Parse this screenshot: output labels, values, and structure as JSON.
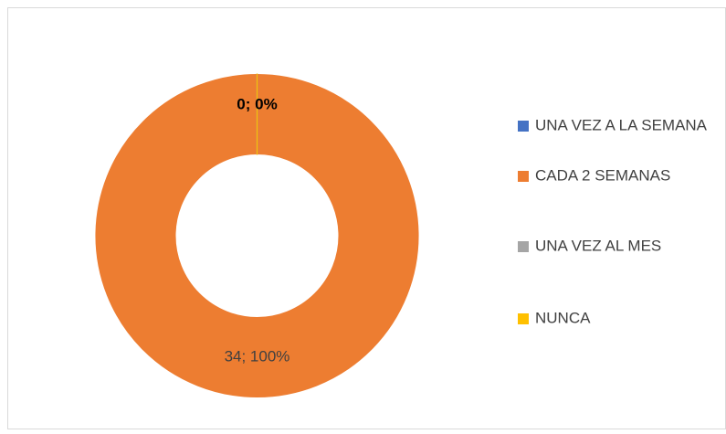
{
  "chart_data": {
    "type": "donut",
    "categories": [
      "UNA VEZ A LA SEMANA",
      "CADA 2 SEMANAS",
      "UNA VEZ AL MES",
      "NUNCA"
    ],
    "values": [
      0,
      34,
      0,
      0
    ],
    "value_labels": [
      "0; 0%",
      "34; 100%",
      null,
      null
    ],
    "colors": [
      "#4472c4",
      "#ed7d31",
      "#a5a5a5",
      "#ffc000"
    ],
    "legend": "right"
  }
}
